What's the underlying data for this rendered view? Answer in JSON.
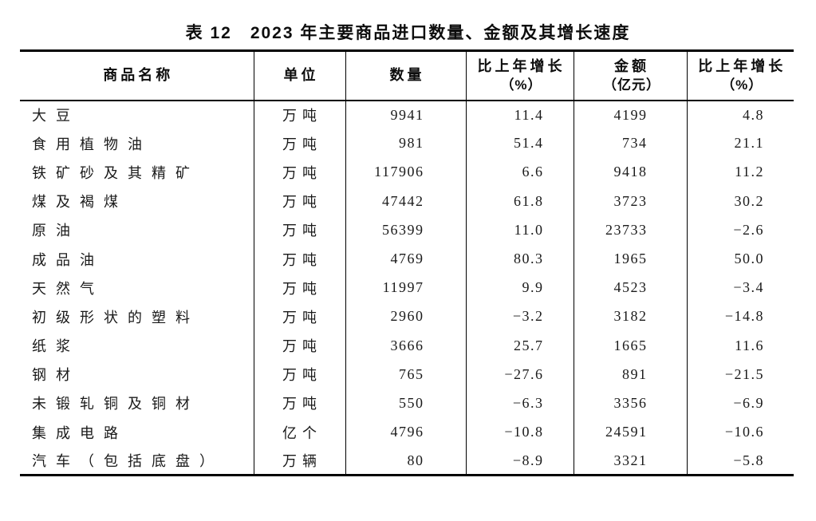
{
  "title": {
    "full": "表 12　2023 年主要商品进口数量、金额及其增长速度"
  },
  "table": {
    "columns": [
      {
        "label": "商品名称"
      },
      {
        "label": "单位"
      },
      {
        "label": "数量"
      },
      {
        "label": "比上年增长",
        "sub": "（%）"
      },
      {
        "label": "金额",
        "sub": "（亿元）"
      },
      {
        "label": "比上年增长",
        "sub": "（%）"
      }
    ],
    "rows": [
      {
        "name": "大豆",
        "unit": "万吨",
        "quantity": "9941",
        "quantity_growth": "11.4",
        "amount": "4199",
        "amount_growth": "4.8"
      },
      {
        "name": "食用植物油",
        "unit": "万吨",
        "quantity": "981",
        "quantity_growth": "51.4",
        "amount": "734",
        "amount_growth": "21.1"
      },
      {
        "name": "铁矿砂及其精矿",
        "unit": "万吨",
        "quantity": "117906",
        "quantity_growth": "6.6",
        "amount": "9418",
        "amount_growth": "11.2"
      },
      {
        "name": "煤及褐煤",
        "unit": "万吨",
        "quantity": "47442",
        "quantity_growth": "61.8",
        "amount": "3723",
        "amount_growth": "30.2"
      },
      {
        "name": "原油",
        "unit": "万吨",
        "quantity": "56399",
        "quantity_growth": "11.0",
        "amount": "23733",
        "amount_growth": "−2.6"
      },
      {
        "name": "成品油",
        "unit": "万吨",
        "quantity": "4769",
        "quantity_growth": "80.3",
        "amount": "1965",
        "amount_growth": "50.0"
      },
      {
        "name": "天然气",
        "unit": "万吨",
        "quantity": "11997",
        "quantity_growth": "9.9",
        "amount": "4523",
        "amount_growth": "−3.4"
      },
      {
        "name": "初级形状的塑料",
        "unit": "万吨",
        "quantity": "2960",
        "quantity_growth": "−3.2",
        "amount": "3182",
        "amount_growth": "−14.8"
      },
      {
        "name": "纸浆",
        "unit": "万吨",
        "quantity": "3666",
        "quantity_growth": "25.7",
        "amount": "1665",
        "amount_growth": "11.6"
      },
      {
        "name": "钢材",
        "unit": "万吨",
        "quantity": "765",
        "quantity_growth": "−27.6",
        "amount": "891",
        "amount_growth": "−21.5"
      },
      {
        "name": "未锻轧铜及铜材",
        "unit": "万吨",
        "quantity": "550",
        "quantity_growth": "−6.3",
        "amount": "3356",
        "amount_growth": "−6.9"
      },
      {
        "name": "集成电路",
        "unit": "亿个",
        "quantity": "4796",
        "quantity_growth": "−10.8",
        "amount": "24591",
        "amount_growth": "−10.6"
      },
      {
        "name": "汽车（包括底盘）",
        "unit": "万辆",
        "quantity": "80",
        "quantity_growth": "−8.9",
        "amount": "3321",
        "amount_growth": "−5.8"
      }
    ]
  }
}
